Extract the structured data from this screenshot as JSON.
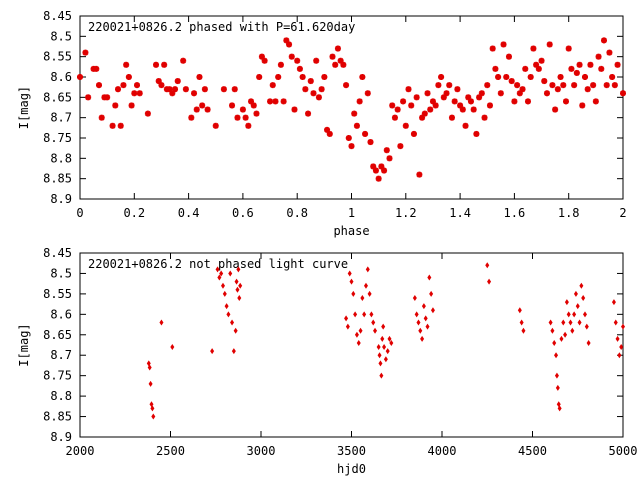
{
  "colors": {
    "points": "#e00000",
    "axes": "#000000",
    "background": "#ffffff"
  },
  "chart_data": [
    {
      "type": "scatter",
      "title": "220021+0826.2 phased with P=61.620day",
      "xlabel": "phase",
      "ylabel": "I[mag]",
      "xlim": [
        0,
        2
      ],
      "ylim": [
        8.45,
        8.9
      ],
      "y_inverted": true,
      "grid": false,
      "xticks": [
        0,
        0.2,
        0.4,
        0.6,
        0.8,
        1,
        1.2,
        1.4,
        1.6,
        1.8,
        2
      ],
      "yticks": [
        8.45,
        8.5,
        8.55,
        8.6,
        8.65,
        8.7,
        8.75,
        8.8,
        8.85,
        8.9
      ],
      "xtick_labels": [
        "0",
        "0.2",
        "0.4",
        "0.6",
        "0.8",
        "1",
        "1.2",
        "1.4",
        "1.6",
        "1.8",
        "2"
      ],
      "ytick_labels": [
        "8.45",
        "8.5",
        "8.55",
        "8.6",
        "8.65",
        "8.7",
        "8.75",
        "8.8",
        "8.85",
        "8.9"
      ],
      "marker": "star",
      "points": [
        [
          0.0,
          8.6
        ],
        [
          0.02,
          8.54
        ],
        [
          0.03,
          8.65
        ],
        [
          0.05,
          8.58
        ],
        [
          0.06,
          8.58
        ],
        [
          0.07,
          8.62
        ],
        [
          0.08,
          8.7
        ],
        [
          0.09,
          8.65
        ],
        [
          0.1,
          8.65
        ],
        [
          0.12,
          8.72
        ],
        [
          0.13,
          8.67
        ],
        [
          0.14,
          8.63
        ],
        [
          0.15,
          8.72
        ],
        [
          0.16,
          8.62
        ],
        [
          0.17,
          8.57
        ],
        [
          0.18,
          8.6
        ],
        [
          0.19,
          8.67
        ],
        [
          0.2,
          8.64
        ],
        [
          0.21,
          8.62
        ],
        [
          0.22,
          8.64
        ],
        [
          0.25,
          8.69
        ],
        [
          0.28,
          8.57
        ],
        [
          0.29,
          8.61
        ],
        [
          0.3,
          8.62
        ],
        [
          0.31,
          8.57
        ],
        [
          0.32,
          8.63
        ],
        [
          0.33,
          8.63
        ],
        [
          0.34,
          8.64
        ],
        [
          0.35,
          8.63
        ],
        [
          0.36,
          8.61
        ],
        [
          0.38,
          8.56
        ],
        [
          0.39,
          8.63
        ],
        [
          0.41,
          8.7
        ],
        [
          0.42,
          8.64
        ],
        [
          0.43,
          8.68
        ],
        [
          0.44,
          8.6
        ],
        [
          0.45,
          8.67
        ],
        [
          0.46,
          8.63
        ],
        [
          0.47,
          8.68
        ],
        [
          0.5,
          8.72
        ],
        [
          0.53,
          8.63
        ],
        [
          0.56,
          8.67
        ],
        [
          0.57,
          8.63
        ],
        [
          0.58,
          8.7
        ],
        [
          0.6,
          8.68
        ],
        [
          0.61,
          8.7
        ],
        [
          0.62,
          8.72
        ],
        [
          0.63,
          8.66
        ],
        [
          0.64,
          8.67
        ],
        [
          0.65,
          8.69
        ],
        [
          0.66,
          8.6
        ],
        [
          0.67,
          8.55
        ],
        [
          0.68,
          8.56
        ],
        [
          0.7,
          8.66
        ],
        [
          0.71,
          8.62
        ],
        [
          0.72,
          8.66
        ],
        [
          0.73,
          8.6
        ],
        [
          0.74,
          8.57
        ],
        [
          0.75,
          8.66
        ],
        [
          0.76,
          8.51
        ],
        [
          0.77,
          8.52
        ],
        [
          0.78,
          8.55
        ],
        [
          0.79,
          8.68
        ],
        [
          0.8,
          8.56
        ],
        [
          0.81,
          8.58
        ],
        [
          0.82,
          8.6
        ],
        [
          0.83,
          8.63
        ],
        [
          0.84,
          8.69
        ],
        [
          0.85,
          8.61
        ],
        [
          0.86,
          8.64
        ],
        [
          0.87,
          8.56
        ],
        [
          0.88,
          8.65
        ],
        [
          0.89,
          8.63
        ],
        [
          0.9,
          8.6
        ],
        [
          0.91,
          8.73
        ],
        [
          0.92,
          8.74
        ],
        [
          0.93,
          8.55
        ],
        [
          0.94,
          8.57
        ],
        [
          0.95,
          8.53
        ],
        [
          0.96,
          8.56
        ],
        [
          0.97,
          8.57
        ],
        [
          0.98,
          8.62
        ],
        [
          0.99,
          8.75
        ],
        [
          1.0,
          8.77
        ],
        [
          1.01,
          8.69
        ],
        [
          1.02,
          8.72
        ],
        [
          1.03,
          8.66
        ],
        [
          1.04,
          8.6
        ],
        [
          1.05,
          8.74
        ],
        [
          1.06,
          8.64
        ],
        [
          1.07,
          8.76
        ],
        [
          1.08,
          8.82
        ],
        [
          1.09,
          8.83
        ],
        [
          1.1,
          8.85
        ],
        [
          1.11,
          8.82
        ],
        [
          1.12,
          8.83
        ],
        [
          1.13,
          8.78
        ],
        [
          1.14,
          8.8
        ],
        [
          1.15,
          8.67
        ],
        [
          1.16,
          8.7
        ],
        [
          1.17,
          8.68
        ],
        [
          1.18,
          8.77
        ],
        [
          1.19,
          8.66
        ],
        [
          1.2,
          8.72
        ],
        [
          1.21,
          8.63
        ],
        [
          1.22,
          8.67
        ],
        [
          1.23,
          8.74
        ],
        [
          1.24,
          8.65
        ],
        [
          1.25,
          8.84
        ],
        [
          1.26,
          8.7
        ],
        [
          1.27,
          8.69
        ],
        [
          1.28,
          8.64
        ],
        [
          1.29,
          8.68
        ],
        [
          1.3,
          8.66
        ],
        [
          1.31,
          8.67
        ],
        [
          1.32,
          8.62
        ],
        [
          1.33,
          8.6
        ],
        [
          1.34,
          8.65
        ],
        [
          1.35,
          8.64
        ],
        [
          1.36,
          8.62
        ],
        [
          1.37,
          8.7
        ],
        [
          1.38,
          8.66
        ],
        [
          1.39,
          8.63
        ],
        [
          1.4,
          8.67
        ],
        [
          1.41,
          8.68
        ],
        [
          1.42,
          8.72
        ],
        [
          1.43,
          8.65
        ],
        [
          1.44,
          8.66
        ],
        [
          1.45,
          8.68
        ],
        [
          1.46,
          8.74
        ],
        [
          1.47,
          8.65
        ],
        [
          1.48,
          8.64
        ],
        [
          1.49,
          8.7
        ],
        [
          1.5,
          8.62
        ],
        [
          1.51,
          8.67
        ],
        [
          1.52,
          8.53
        ],
        [
          1.53,
          8.58
        ],
        [
          1.54,
          8.6
        ],
        [
          1.55,
          8.64
        ],
        [
          1.56,
          8.52
        ],
        [
          1.57,
          8.6
        ],
        [
          1.58,
          8.55
        ],
        [
          1.59,
          8.61
        ],
        [
          1.6,
          8.66
        ],
        [
          1.61,
          8.62
        ],
        [
          1.62,
          8.64
        ],
        [
          1.63,
          8.63
        ],
        [
          1.64,
          8.58
        ],
        [
          1.65,
          8.66
        ],
        [
          1.66,
          8.6
        ],
        [
          1.67,
          8.53
        ],
        [
          1.68,
          8.57
        ],
        [
          1.69,
          8.58
        ],
        [
          1.7,
          8.56
        ],
        [
          1.71,
          8.61
        ],
        [
          1.72,
          8.64
        ],
        [
          1.73,
          8.52
        ],
        [
          1.74,
          8.62
        ],
        [
          1.75,
          8.68
        ],
        [
          1.76,
          8.63
        ],
        [
          1.77,
          8.6
        ],
        [
          1.78,
          8.62
        ],
        [
          1.79,
          8.66
        ],
        [
          1.8,
          8.53
        ],
        [
          1.81,
          8.58
        ],
        [
          1.82,
          8.62
        ],
        [
          1.83,
          8.59
        ],
        [
          1.84,
          8.57
        ],
        [
          1.85,
          8.67
        ],
        [
          1.86,
          8.6
        ],
        [
          1.87,
          8.63
        ],
        [
          1.88,
          8.57
        ],
        [
          1.89,
          8.62
        ],
        [
          1.9,
          8.66
        ],
        [
          1.91,
          8.55
        ],
        [
          1.92,
          8.58
        ],
        [
          1.93,
          8.51
        ],
        [
          1.94,
          8.62
        ],
        [
          1.95,
          8.54
        ],
        [
          1.96,
          8.6
        ],
        [
          1.97,
          8.62
        ],
        [
          1.98,
          8.57
        ],
        [
          2.0,
          8.64
        ]
      ]
    },
    {
      "type": "scatter",
      "title": "220021+0826.2 not phased light curve",
      "xlabel": "hjd0",
      "ylabel": "I[mag]",
      "xlim": [
        2000,
        5000
      ],
      "ylim": [
        8.45,
        8.9
      ],
      "y_inverted": true,
      "grid": false,
      "xticks": [
        2000,
        2500,
        3000,
        3500,
        4000,
        4500,
        5000
      ],
      "yticks": [
        8.45,
        8.5,
        8.55,
        8.6,
        8.65,
        8.7,
        8.75,
        8.8,
        8.85,
        8.9
      ],
      "xtick_labels": [
        "2000",
        "2500",
        "3000",
        "3500",
        "4000",
        "4500",
        "5000"
      ],
      "ytick_labels": [
        "8.45",
        "8.5",
        "8.55",
        "8.6",
        "8.65",
        "8.7",
        "8.75",
        "8.8",
        "8.85",
        "8.9"
      ],
      "marker": "diamond",
      "points": [
        [
          2380,
          8.72
        ],
        [
          2385,
          8.73
        ],
        [
          2390,
          8.77
        ],
        [
          2395,
          8.82
        ],
        [
          2400,
          8.83
        ],
        [
          2405,
          8.85
        ],
        [
          2450,
          8.62
        ],
        [
          2510,
          8.68
        ],
        [
          2730,
          8.69
        ],
        [
          2760,
          8.49
        ],
        [
          2770,
          8.51
        ],
        [
          2780,
          8.5
        ],
        [
          2790,
          8.53
        ],
        [
          2800,
          8.55
        ],
        [
          2810,
          8.58
        ],
        [
          2820,
          8.6
        ],
        [
          2830,
          8.5
        ],
        [
          2840,
          8.62
        ],
        [
          2850,
          8.69
        ],
        [
          2860,
          8.64
        ],
        [
          2865,
          8.52
        ],
        [
          2870,
          8.54
        ],
        [
          2875,
          8.49
        ],
        [
          2880,
          8.56
        ],
        [
          2885,
          8.53
        ],
        [
          3470,
          8.61
        ],
        [
          3480,
          8.63
        ],
        [
          3490,
          8.5
        ],
        [
          3500,
          8.52
        ],
        [
          3510,
          8.55
        ],
        [
          3520,
          8.6
        ],
        [
          3530,
          8.65
        ],
        [
          3540,
          8.67
        ],
        [
          3550,
          8.64
        ],
        [
          3560,
          8.56
        ],
        [
          3570,
          8.6
        ],
        [
          3580,
          8.53
        ],
        [
          3590,
          8.49
        ],
        [
          3600,
          8.55
        ],
        [
          3610,
          8.6
        ],
        [
          3620,
          8.62
        ],
        [
          3630,
          8.64
        ],
        [
          3650,
          8.68
        ],
        [
          3655,
          8.7
        ],
        [
          3660,
          8.72
        ],
        [
          3665,
          8.75
        ],
        [
          3670,
          8.66
        ],
        [
          3675,
          8.63
        ],
        [
          3680,
          8.68
        ],
        [
          3690,
          8.71
        ],
        [
          3700,
          8.69
        ],
        [
          3710,
          8.66
        ],
        [
          3720,
          8.67
        ],
        [
          3850,
          8.56
        ],
        [
          3860,
          8.6
        ],
        [
          3870,
          8.62
        ],
        [
          3880,
          8.64
        ],
        [
          3890,
          8.66
        ],
        [
          3900,
          8.58
        ],
        [
          3910,
          8.61
        ],
        [
          3920,
          8.63
        ],
        [
          3930,
          8.51
        ],
        [
          3940,
          8.55
        ],
        [
          3950,
          8.59
        ],
        [
          4250,
          8.48
        ],
        [
          4260,
          8.52
        ],
        [
          4430,
          8.59
        ],
        [
          4440,
          8.62
        ],
        [
          4450,
          8.64
        ],
        [
          4600,
          8.62
        ],
        [
          4610,
          8.64
        ],
        [
          4620,
          8.67
        ],
        [
          4630,
          8.7
        ],
        [
          4635,
          8.75
        ],
        [
          4640,
          8.78
        ],
        [
          4645,
          8.82
        ],
        [
          4650,
          8.83
        ],
        [
          4660,
          8.66
        ],
        [
          4670,
          8.62
        ],
        [
          4680,
          8.65
        ],
        [
          4690,
          8.57
        ],
        [
          4700,
          8.6
        ],
        [
          4710,
          8.62
        ],
        [
          4720,
          8.64
        ],
        [
          4730,
          8.6
        ],
        [
          4740,
          8.55
        ],
        [
          4750,
          8.58
        ],
        [
          4760,
          8.62
        ],
        [
          4770,
          8.53
        ],
        [
          4780,
          8.56
        ],
        [
          4790,
          8.6
        ],
        [
          4800,
          8.63
        ],
        [
          4810,
          8.67
        ],
        [
          4950,
          8.57
        ],
        [
          4960,
          8.62
        ],
        [
          4970,
          8.66
        ],
        [
          4980,
          8.7
        ],
        [
          4990,
          8.68
        ],
        [
          5000,
          8.63
        ]
      ]
    }
  ]
}
